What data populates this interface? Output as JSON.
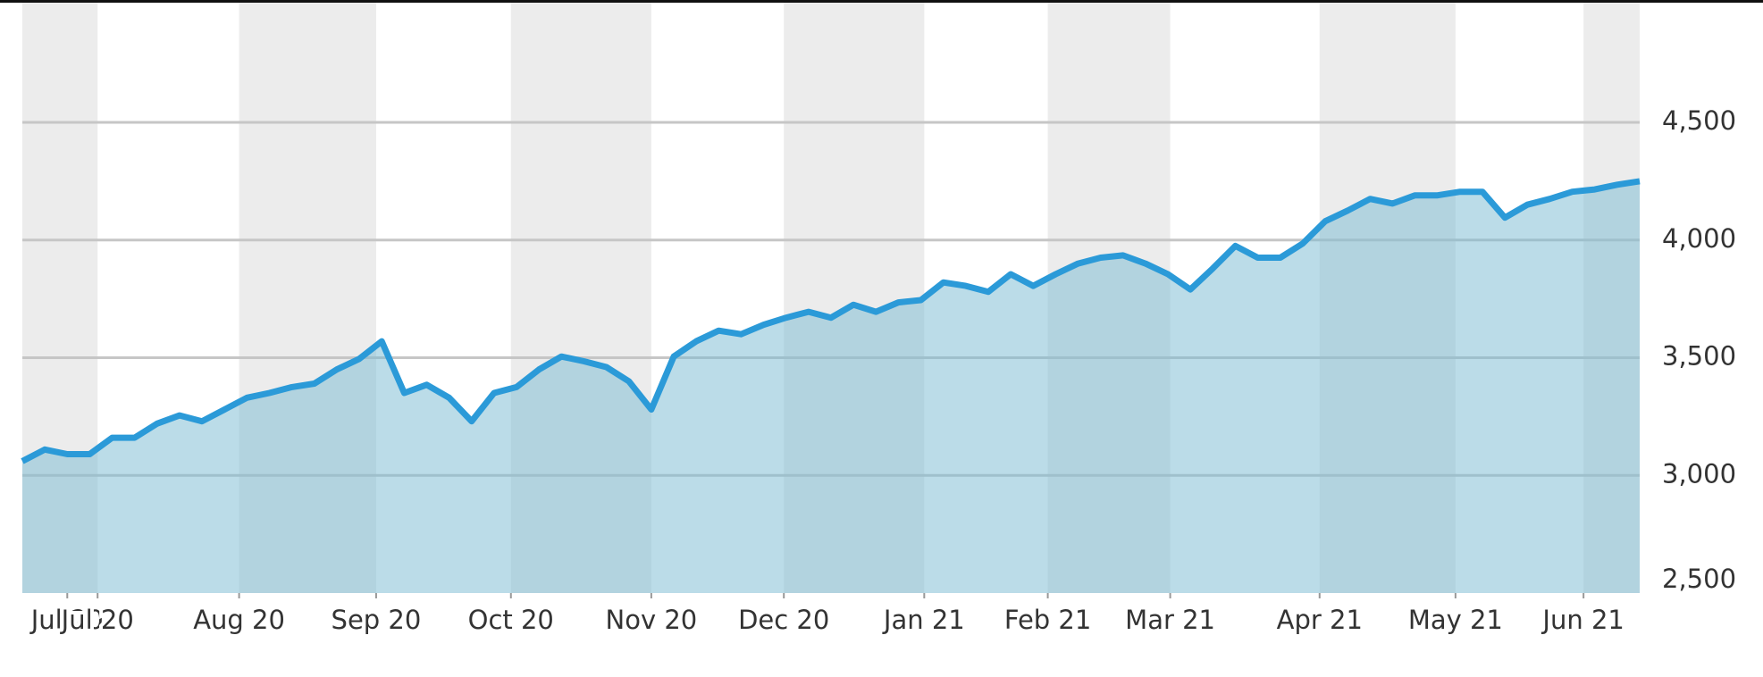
{
  "chart_data": {
    "type": "area",
    "values": [
      3060,
      3110,
      3090,
      3090,
      3160,
      3160,
      3220,
      3255,
      3230,
      3280,
      3330,
      3350,
      3375,
      3390,
      3450,
      3495,
      3570,
      3350,
      3385,
      3330,
      3230,
      3350,
      3375,
      3450,
      3505,
      3485,
      3460,
      3400,
      3280,
      3505,
      3570,
      3615,
      3600,
      3640,
      3670,
      3695,
      3670,
      3725,
      3695,
      3735,
      3745,
      3820,
      3805,
      3780,
      3855,
      3805,
      3855,
      3900,
      3925,
      3935,
      3900,
      3855,
      3790,
      3880,
      3975,
      3925,
      3925,
      3985,
      4080,
      4125,
      4175,
      4155,
      4190,
      4190,
      4205,
      4205,
      4095,
      4150,
      4175,
      4205,
      4215,
      4235,
      4250
    ],
    "color": "#2b9ad8",
    "xlim": [
      0,
      72
    ],
    "xticks": [
      {
        "value": 2.0,
        "label": "Jul 20"
      },
      {
        "value": 3.35,
        "label": "Jul 20"
      },
      {
        "value": 9.65,
        "label": "Aug 20"
      },
      {
        "value": 15.75,
        "label": "Sep 20"
      },
      {
        "value": 21.75,
        "label": "Oct 20"
      },
      {
        "value": 28.0,
        "label": "Nov 20"
      },
      {
        "value": 33.9,
        "label": "Dec 20"
      },
      {
        "value": 40.15,
        "label": "Jan 21"
      },
      {
        "value": 45.65,
        "label": "Feb 21"
      },
      {
        "value": 51.1,
        "label": "Mar 21"
      },
      {
        "value": 57.75,
        "label": "Apr 21"
      },
      {
        "value": 63.8,
        "label": "May 21"
      },
      {
        "value": 69.5,
        "label": "Jun 21"
      }
    ],
    "ylim": [
      2500,
      5020
    ],
    "yticks": [
      {
        "value": 2500,
        "label": "2,500"
      },
      {
        "value": 3000,
        "label": "3,000"
      },
      {
        "value": 3500,
        "label": "3,500"
      },
      {
        "value": 4000,
        "label": "4,000"
      },
      {
        "value": 4500,
        "label": "4,500"
      }
    ],
    "grid": true
  }
}
